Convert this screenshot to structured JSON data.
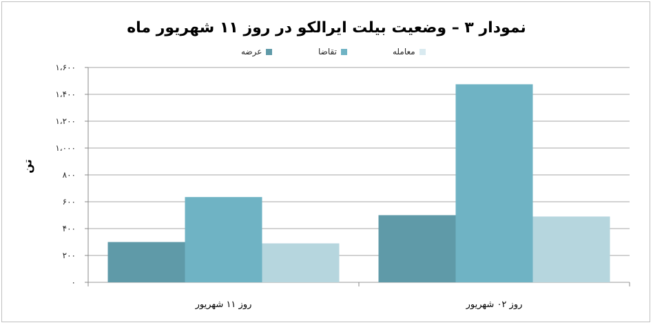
{
  "chart_data": {
    "type": "bar",
    "title": "نمودار ۳ – وضعیت بیلت ایرالکو در روز ۱۱ شهریور ماه",
    "ylabel": "تن",
    "ylim": [
      0,
      1600
    ],
    "yticks": [
      0,
      200,
      400,
      600,
      800,
      1000,
      1200,
      1400,
      1600
    ],
    "ytick_labels": [
      "۰",
      "۲۰۰",
      "۴۰۰",
      "۶۰۰",
      "۸۰۰",
      "۱،۰۰۰",
      "۱،۲۰۰",
      "۱،۴۰۰",
      "۱،۶۰۰"
    ],
    "categories": [
      "روز ۱۱ شهریور",
      "روز ۰۲ شهریور"
    ],
    "series": [
      {
        "name": "عرضه",
        "color": "#5f9aa8",
        "values": [
          300,
          500
        ]
      },
      {
        "name": "تقاضا",
        "color": "#6fb3c4",
        "values": [
          635,
          1475
        ]
      },
      {
        "name": "معامله",
        "color": "#b6d6de",
        "values": [
          290,
          490
        ]
      }
    ],
    "grid": true,
    "legend_position": "top"
  }
}
